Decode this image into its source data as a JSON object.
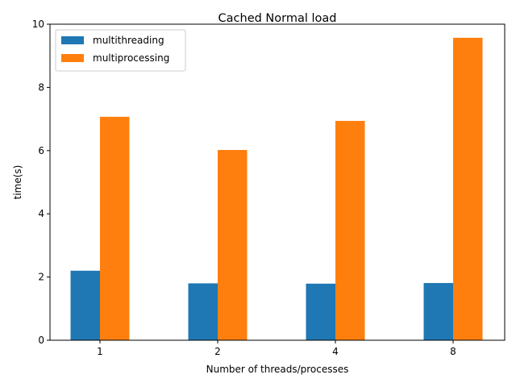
{
  "chart_data": {
    "type": "bar",
    "title": "Cached Normal load",
    "xlabel": "Number of threads/processes",
    "ylabel": "time(s)",
    "categories": [
      "1",
      "2",
      "4",
      "8"
    ],
    "series": [
      {
        "name": "multithreading",
        "values": [
          2.2,
          1.8,
          1.79,
          1.81
        ],
        "color": "#1f77b4"
      },
      {
        "name": "multiprocessing",
        "values": [
          7.07,
          6.02,
          6.94,
          9.57
        ],
        "color": "#ff7f0e"
      }
    ],
    "ylim": [
      0,
      10
    ],
    "yticks": [
      "0",
      "2",
      "4",
      "6",
      "8",
      "10"
    ],
    "legend": "top-left",
    "grid": false
  }
}
